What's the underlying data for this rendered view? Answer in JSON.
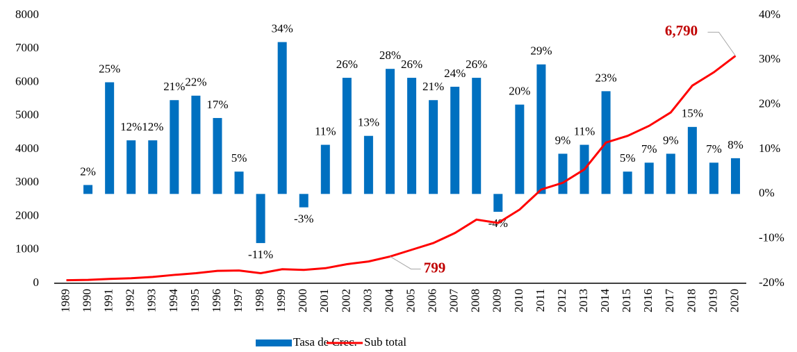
{
  "chart_data": {
    "type": "bar_line",
    "categories": [
      "1989",
      "1990",
      "1991",
      "1992",
      "1993",
      "1994",
      "1995",
      "1996",
      "1997",
      "1998",
      "1999",
      "2000",
      "2001",
      "2002",
      "2003",
      "2004",
      "2005",
      "2006",
      "2007",
      "2008",
      "2009",
      "2010",
      "2011",
      "2012",
      "2013",
      "2014",
      "2015",
      "2016",
      "2017",
      "2018",
      "2019",
      "2020"
    ],
    "series": [
      {
        "name": "Tasa de Crec.",
        "type": "bar",
        "axis": "y2",
        "color": "#0070c0",
        "values": [
          null,
          2,
          25,
          12,
          12,
          21,
          22,
          17,
          5,
          -11,
          34,
          -3,
          11,
          26,
          13,
          28,
          26,
          21,
          24,
          26,
          -4,
          20,
          29,
          9,
          11,
          23,
          5,
          7,
          9,
          15,
          7,
          8
        ],
        "value_labels": [
          null,
          "2%",
          "25%",
          "12%",
          "12%",
          "21%",
          "22%",
          "17%",
          "5%",
          "-11%",
          "34%",
          "-3%",
          "11%",
          "26%",
          "13%",
          "28%",
          "26%",
          "21%",
          "24%",
          "26%",
          "-4%",
          "20%",
          "29%",
          "9%",
          "11%",
          "23%",
          "5%",
          "7%",
          "9%",
          "15%",
          "7%",
          "8%"
        ]
      },
      {
        "name": "Sub total",
        "type": "line",
        "color": "#ff0000",
        "values": [
          90,
          100,
          130,
          150,
          190,
          250,
          300,
          370,
          380,
          300,
          420,
          400,
          450,
          570,
          650,
          799,
          1000,
          1200,
          1500,
          1900,
          1800,
          2200,
          2800,
          3000,
          3400,
          4200,
          4400,
          4700,
          5100,
          5900,
          6300,
          6790
        ],
        "value_labels": [
          null,
          null,
          null,
          null,
          null,
          null,
          null,
          null,
          null,
          null,
          null,
          null,
          null,
          null,
          null,
          "799",
          null,
          null,
          null,
          null,
          null,
          null,
          null,
          null,
          null,
          null,
          null,
          null,
          null,
          null,
          null,
          "6,790"
        ]
      }
    ],
    "ylim": [
      0,
      8000
    ],
    "yticks": [
      0,
      1000,
      2000,
      3000,
      4000,
      5000,
      6000,
      7000,
      8000
    ],
    "y2lim": [
      -20,
      40
    ],
    "y2ticks": [
      {
        "value": -20,
        "label": "-20%"
      },
      {
        "value": -10,
        "label": "-10%"
      },
      {
        "value": 0,
        "label": "0%"
      },
      {
        "value": 10,
        "label": "10%"
      },
      {
        "value": 20,
        "label": "20%"
      },
      {
        "value": 30,
        "label": "30%"
      },
      {
        "value": 40,
        "label": "40%"
      }
    ],
    "grid": false
  }
}
